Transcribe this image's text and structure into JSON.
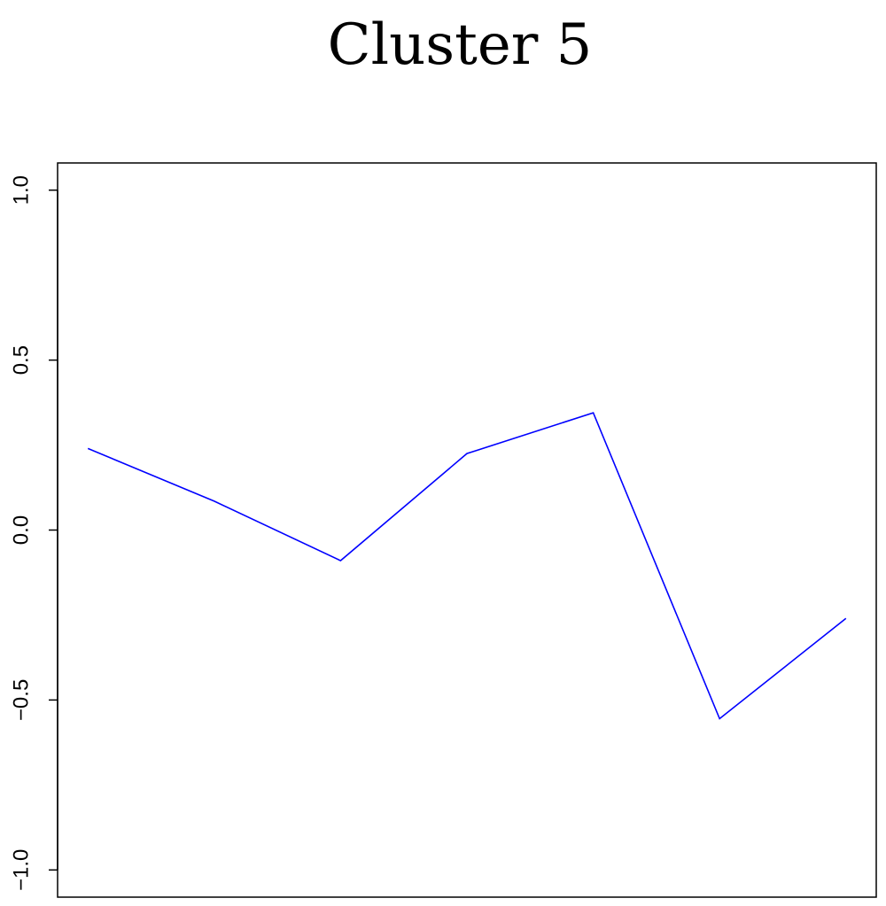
{
  "chart_data": {
    "type": "line",
    "title": "Cluster 5",
    "xlabel": "",
    "ylabel": "",
    "x": [
      1,
      2,
      3,
      4,
      5,
      6,
      7
    ],
    "ylim": [
      -1.08,
      1.08
    ],
    "yticks": [
      -1.0,
      -0.5,
      0.0,
      0.5,
      1.0
    ],
    "ytick_labels": [
      "−1.0",
      "−0.5",
      "0.0",
      "0.5",
      "1.0"
    ],
    "grid": false,
    "series": [
      {
        "color": "#0000ff",
        "values": [
          0.24,
          0.085,
          -0.09,
          0.225,
          0.345,
          -0.555,
          -0.26
        ]
      }
    ]
  }
}
